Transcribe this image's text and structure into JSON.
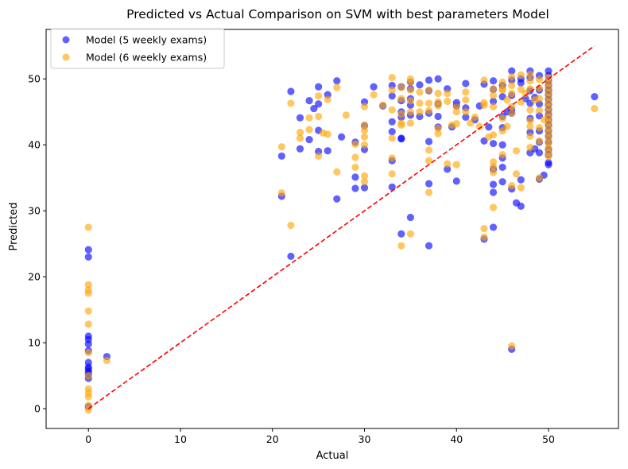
{
  "chart_data": {
    "type": "scatter",
    "title": "Predicted vs Actual Comparison on SVM with best parameters Model",
    "xlabel": "Actual",
    "ylabel": "Predicted",
    "xlim": [
      -4.6,
      57.6
    ],
    "ylim": [
      -3.0,
      57.5
    ],
    "xticks": [
      0,
      10,
      20,
      30,
      40,
      50
    ],
    "yticks": [
      0,
      10,
      20,
      30,
      40,
      50
    ],
    "grid": false,
    "legend_position": "top-left",
    "reference_line": {
      "x": [
        0,
        55
      ],
      "y": [
        0,
        55
      ],
      "color": "#ff0000",
      "style": "dashed"
    },
    "series": [
      {
        "name": "Model (5 weekly exams)",
        "color": "#0000ff",
        "points": [
          [
            0,
            24.1
          ],
          [
            0,
            23.0
          ],
          [
            0,
            11.0
          ],
          [
            0,
            10.5
          ],
          [
            0,
            9.8
          ],
          [
            0,
            8.8
          ],
          [
            0,
            7.0
          ],
          [
            0,
            6.3
          ],
          [
            0,
            6.0
          ],
          [
            0,
            5.6
          ],
          [
            0,
            5.2
          ],
          [
            0,
            4.6
          ],
          [
            0,
            0.3
          ],
          [
            2,
            7.9
          ],
          [
            21,
            38.3
          ],
          [
            21,
            32.2
          ],
          [
            22,
            48.1
          ],
          [
            22,
            23.1
          ],
          [
            23,
            44.1
          ],
          [
            23,
            39.4
          ],
          [
            24,
            46.7
          ],
          [
            24,
            40.8
          ],
          [
            24.5,
            45.5
          ],
          [
            25,
            48.8
          ],
          [
            25,
            46.2
          ],
          [
            25,
            42.2
          ],
          [
            25,
            39.0
          ],
          [
            26,
            47.6
          ],
          [
            26,
            39.1
          ],
          [
            27,
            49.7
          ],
          [
            27,
            31.8
          ],
          [
            27.5,
            41.2
          ],
          [
            29,
            40.4
          ],
          [
            29,
            35.1
          ],
          [
            29,
            33.4
          ],
          [
            30,
            46.5
          ],
          [
            30,
            42.9
          ],
          [
            30,
            39.3
          ],
          [
            30,
            33.5
          ],
          [
            31,
            48.8
          ],
          [
            32,
            45.9
          ],
          [
            33,
            49.0
          ],
          [
            33,
            47.4
          ],
          [
            33,
            43.5
          ],
          [
            33,
            42.0
          ],
          [
            33,
            37.6
          ],
          [
            33,
            33.6
          ],
          [
            34,
            48.8
          ],
          [
            34,
            46.7
          ],
          [
            34,
            45.0
          ],
          [
            34,
            44.2
          ],
          [
            34,
            41.0
          ],
          [
            34,
            40.9
          ],
          [
            34,
            26.5
          ],
          [
            35,
            49.5
          ],
          [
            35,
            48.5
          ],
          [
            35,
            47.0
          ],
          [
            35,
            46.0
          ],
          [
            35,
            44.5
          ],
          [
            35,
            29.0
          ],
          [
            36,
            49.1
          ],
          [
            36,
            44.3
          ],
          [
            37,
            49.8
          ],
          [
            37,
            48.2
          ],
          [
            37,
            44.8
          ],
          [
            37,
            40.5
          ],
          [
            37,
            34.1
          ],
          [
            37,
            24.7
          ],
          [
            38,
            50.0
          ],
          [
            38,
            46.2
          ],
          [
            38,
            44.3
          ],
          [
            38,
            42.7
          ],
          [
            39,
            48.5
          ],
          [
            39,
            36.3
          ],
          [
            39.5,
            42.7
          ],
          [
            40,
            46.4
          ],
          [
            40,
            45.9
          ],
          [
            40,
            34.5
          ],
          [
            41,
            49.3
          ],
          [
            41,
            45.6
          ],
          [
            41,
            44.2
          ],
          [
            42,
            43.8
          ],
          [
            42.5,
            45.9
          ],
          [
            43,
            49.2
          ],
          [
            43,
            40.6
          ],
          [
            43,
            25.7
          ],
          [
            43.5,
            42.7
          ],
          [
            44,
            49.7
          ],
          [
            44,
            48.4
          ],
          [
            44,
            46.6
          ],
          [
            44,
            40.2
          ],
          [
            44,
            36.3
          ],
          [
            44,
            34.0
          ],
          [
            44,
            32.8
          ],
          [
            44,
            27.5
          ],
          [
            45,
            49.0
          ],
          [
            45,
            47.3
          ],
          [
            45,
            44.3
          ],
          [
            45,
            42.6
          ],
          [
            45,
            40.0
          ],
          [
            45,
            38.0
          ],
          [
            45,
            36.6
          ],
          [
            45,
            34.4
          ],
          [
            45.5,
            45.0
          ],
          [
            46,
            51.2
          ],
          [
            46,
            49.8
          ],
          [
            46,
            47.5
          ],
          [
            46,
            45.3
          ],
          [
            46,
            44.8
          ],
          [
            46,
            33.3
          ],
          [
            46,
            9.0
          ],
          [
            46.5,
            31.2
          ],
          [
            47,
            50.0
          ],
          [
            47,
            49.4
          ],
          [
            47,
            34.7
          ],
          [
            47,
            30.7
          ],
          [
            47.5,
            47.0
          ],
          [
            48,
            51.2
          ],
          [
            48,
            50.2
          ],
          [
            48,
            48.2
          ],
          [
            48,
            46.3
          ],
          [
            48,
            44.0
          ],
          [
            48,
            41.9
          ],
          [
            48,
            38.8
          ],
          [
            48.5,
            47.2
          ],
          [
            48.5,
            39.4
          ],
          [
            49,
            50.5
          ],
          [
            49,
            48.3
          ],
          [
            49,
            46.2
          ],
          [
            49,
            44.4
          ],
          [
            49,
            42.1
          ],
          [
            49,
            40.4
          ],
          [
            49,
            38.8
          ],
          [
            49,
            34.8
          ],
          [
            49.5,
            35.4
          ],
          [
            50,
            51.2
          ],
          [
            50,
            50.5
          ],
          [
            50,
            49.7
          ],
          [
            50,
            49.0
          ],
          [
            50,
            48.3
          ],
          [
            50,
            47.6
          ],
          [
            50,
            46.9
          ],
          [
            50,
            46.1
          ],
          [
            50,
            45.3
          ],
          [
            50,
            44.6
          ],
          [
            50,
            43.8
          ],
          [
            50,
            43.0
          ],
          [
            50,
            42.1
          ],
          [
            50,
            41.3
          ],
          [
            50,
            40.4
          ],
          [
            50,
            39.3
          ],
          [
            50,
            38.5
          ],
          [
            50,
            37.3
          ],
          [
            50,
            37.0
          ],
          [
            55,
            47.3
          ]
        ]
      },
      {
        "name": "Model (6 weekly exams)",
        "color": "#ffa500",
        "points": [
          [
            0,
            27.5
          ],
          [
            0,
            18.8
          ],
          [
            0,
            18.0
          ],
          [
            0,
            17.5
          ],
          [
            0,
            14.8
          ],
          [
            0,
            12.8
          ],
          [
            0,
            8.5
          ],
          [
            0,
            5.0
          ],
          [
            0,
            3.0
          ],
          [
            0,
            2.4
          ],
          [
            0,
            1.8
          ],
          [
            0,
            0.5
          ],
          [
            0,
            -0.2
          ],
          [
            2,
            7.3
          ],
          [
            21,
            39.7
          ],
          [
            21,
            32.7
          ],
          [
            22,
            46.3
          ],
          [
            22,
            27.8
          ],
          [
            23,
            41.9
          ],
          [
            23,
            41.0
          ],
          [
            24,
            44.1
          ],
          [
            24,
            42.3
          ],
          [
            25,
            44.3
          ],
          [
            25,
            38.3
          ],
          [
            25,
            47.4
          ],
          [
            25.5,
            41.8
          ],
          [
            26,
            46.9
          ],
          [
            26,
            41.6
          ],
          [
            27,
            48.7
          ],
          [
            27,
            35.9
          ],
          [
            28,
            44.5
          ],
          [
            29,
            40.1
          ],
          [
            29,
            38.1
          ],
          [
            29,
            36.6
          ],
          [
            30,
            45.8
          ],
          [
            30,
            43.0
          ],
          [
            30,
            42.2
          ],
          [
            30,
            41.2
          ],
          [
            30,
            40.0
          ],
          [
            30,
            35.3
          ],
          [
            30,
            34.4
          ],
          [
            31,
            47.6
          ],
          [
            32,
            46.0
          ],
          [
            33,
            50.2
          ],
          [
            33,
            48.3
          ],
          [
            33,
            45.3
          ],
          [
            33,
            41.0
          ],
          [
            33,
            38.0
          ],
          [
            33,
            35.6
          ],
          [
            34,
            48.7
          ],
          [
            34,
            47.0
          ],
          [
            34,
            44.7
          ],
          [
            34,
            43.3
          ],
          [
            34,
            43.0
          ],
          [
            34,
            24.7
          ],
          [
            35,
            50.0
          ],
          [
            35,
            49.5
          ],
          [
            35,
            48.3
          ],
          [
            35,
            46.7
          ],
          [
            35,
            45.0
          ],
          [
            35,
            43.3
          ],
          [
            35,
            26.5
          ],
          [
            36,
            48.0
          ],
          [
            36,
            46.3
          ],
          [
            36,
            45.0
          ],
          [
            37,
            48.3
          ],
          [
            37,
            46.3
          ],
          [
            37,
            45.2
          ],
          [
            37,
            39.2
          ],
          [
            37,
            37.6
          ],
          [
            37,
            32.8
          ],
          [
            38,
            47.8
          ],
          [
            38,
            46.5
          ],
          [
            38,
            45.9
          ],
          [
            38,
            42.5
          ],
          [
            38,
            41.7
          ],
          [
            39,
            47.8
          ],
          [
            39,
            46.6
          ],
          [
            39,
            37.1
          ],
          [
            39.5,
            43.0
          ],
          [
            40,
            45.8
          ],
          [
            40,
            45.0
          ],
          [
            40,
            43.2
          ],
          [
            40,
            37.0
          ],
          [
            41,
            48.0
          ],
          [
            41,
            46.8
          ],
          [
            41,
            45.0
          ],
          [
            41.5,
            43.3
          ],
          [
            42,
            44.2
          ],
          [
            42.5,
            42.8
          ],
          [
            43,
            49.8
          ],
          [
            43,
            46.4
          ],
          [
            43,
            46.0
          ],
          [
            43,
            27.3
          ],
          [
            43,
            26.0
          ],
          [
            43.5,
            41.2
          ],
          [
            44,
            48.5
          ],
          [
            44,
            47.5
          ],
          [
            44,
            45.8
          ],
          [
            44,
            41.5
          ],
          [
            44,
            37.4
          ],
          [
            44,
            36.7
          ],
          [
            44,
            35.8
          ],
          [
            44,
            30.5
          ],
          [
            45,
            49.5
          ],
          [
            45,
            48.5
          ],
          [
            45,
            48.3
          ],
          [
            45,
            44.0
          ],
          [
            45,
            42.1
          ],
          [
            45,
            38.5
          ],
          [
            45.5,
            46.8
          ],
          [
            45.5,
            42.8
          ],
          [
            46,
            50.3
          ],
          [
            46,
            49.0
          ],
          [
            46,
            47.8
          ],
          [
            46,
            45.8
          ],
          [
            46,
            44.8
          ],
          [
            46,
            33.8
          ],
          [
            46,
            9.5
          ],
          [
            46.5,
            39.1
          ],
          [
            46.5,
            35.6
          ],
          [
            47,
            50.6
          ],
          [
            47,
            48.4
          ],
          [
            47,
            46.5
          ],
          [
            47,
            33.5
          ],
          [
            47.5,
            47.8
          ],
          [
            48,
            50.7
          ],
          [
            48,
            49.7
          ],
          [
            48,
            48.5
          ],
          [
            48,
            45.3
          ],
          [
            48,
            43.7
          ],
          [
            48,
            42.8
          ],
          [
            48,
            41.3
          ],
          [
            48,
            39.6
          ],
          [
            48.5,
            46.8
          ],
          [
            49,
            49.9
          ],
          [
            49,
            48.6
          ],
          [
            49,
            47.0
          ],
          [
            49,
            45.2
          ],
          [
            49,
            42.6
          ],
          [
            49,
            40.6
          ],
          [
            49,
            35.0
          ],
          [
            49.5,
            43.8
          ],
          [
            50,
            50.2
          ],
          [
            50,
            49.4
          ],
          [
            50,
            48.7
          ],
          [
            50,
            47.9
          ],
          [
            50,
            47.2
          ],
          [
            50,
            46.4
          ],
          [
            50,
            45.7
          ],
          [
            50,
            44.9
          ],
          [
            50,
            44.1
          ],
          [
            50,
            43.4
          ],
          [
            50,
            42.6
          ],
          [
            50,
            41.9
          ],
          [
            50,
            41.1
          ],
          [
            50,
            40.3
          ],
          [
            50,
            39.6
          ],
          [
            50,
            38.8
          ],
          [
            50,
            38.2
          ],
          [
            55,
            45.5
          ]
        ]
      }
    ]
  }
}
